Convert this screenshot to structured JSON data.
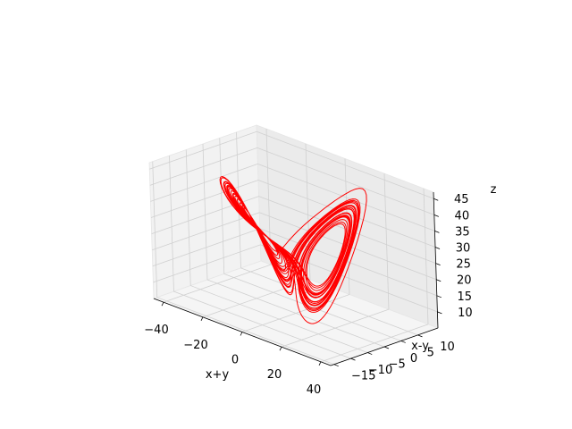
{
  "chart_data": {
    "type": "line",
    "projection": "3d",
    "title": "",
    "xlabel": "x+y",
    "ylabel": "x-y",
    "zlabel": "z",
    "xlim": [
      -45,
      45
    ],
    "ylim": [
      -16,
      16
    ],
    "zlim": [
      5,
      47
    ],
    "xticks": [
      -40,
      -20,
      0,
      20,
      40
    ],
    "yticks": [
      -15,
      -10,
      -5,
      0,
      5,
      10
    ],
    "zticks": [
      10,
      15,
      20,
      25,
      30,
      35,
      40,
      45
    ],
    "xtick_labels": [
      "−40",
      "−20",
      "0",
      "20",
      "40"
    ],
    "ytick_labels": [
      "−15",
      "−10",
      "−5",
      "0",
      "5",
      "10"
    ],
    "ztick_labels": [
      "10",
      "15",
      "20",
      "25",
      "30",
      "35",
      "40",
      "45"
    ],
    "grid": true,
    "series": [
      {
        "color": "#ff0000",
        "system": "lorenz",
        "parameters": {
          "sigma": 10,
          "rho": 28,
          "beta": 2.6667
        },
        "initial": [
          1,
          1,
          20
        ],
        "dt": 0.01,
        "steps": 3000,
        "coords": "x+y, x-y, z"
      }
    ]
  }
}
